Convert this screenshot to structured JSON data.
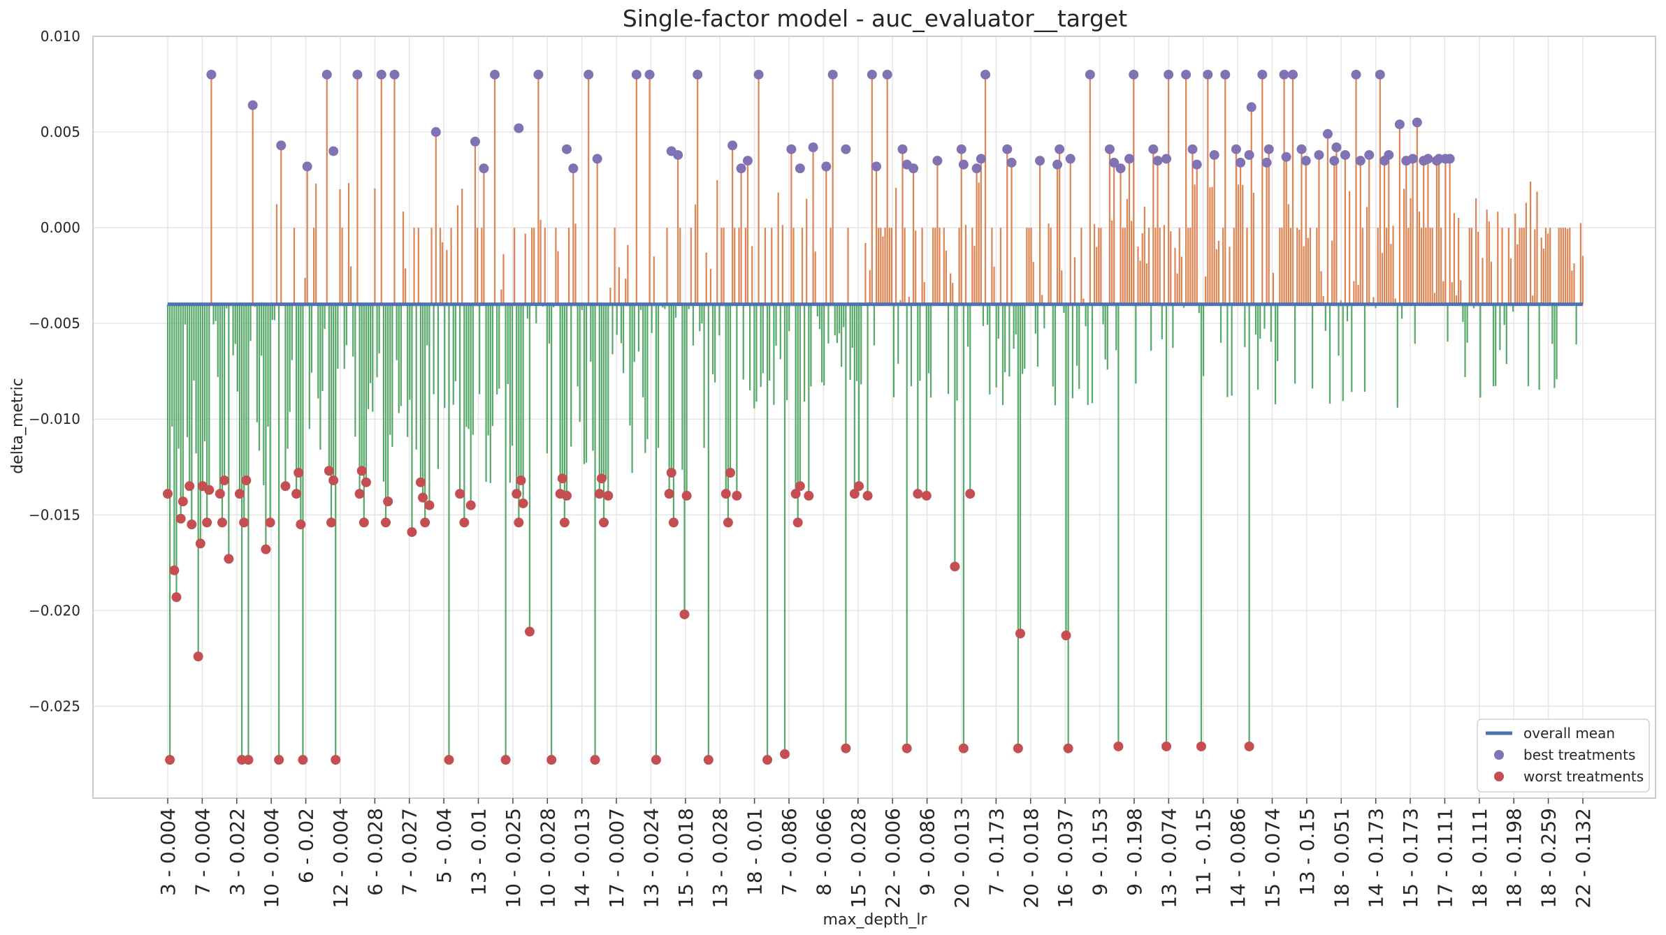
{
  "chart_data": {
    "type": "bar",
    "title": "Single-factor model - auc_evaluator__target",
    "xlabel": "max_depth_lr",
    "ylabel": "delta_metric",
    "ylim": [
      -0.0298,
      0.01
    ],
    "yticks": [
      0.01,
      0.005,
      0.0,
      -0.005,
      -0.01,
      -0.015,
      -0.02,
      -0.025
    ],
    "ytick_labels": [
      "0.010",
      "0.005",
      "0.000",
      "−0.005",
      "−0.010",
      "−0.015",
      "−0.020",
      "−0.025"
    ],
    "n_treatments": 650,
    "overall_mean": -0.004,
    "grid": true,
    "legend_position": "lower-right",
    "colors": {
      "above_mean": "#dd8452",
      "below_mean": "#55a868",
      "mean_line": "#4c72b0",
      "best": "#8172b3",
      "worst": "#c44e52",
      "grid": "#e5e5e5",
      "axes": "#cccccc"
    },
    "xtick_labels": [
      "3 - 0.004",
      "7 - 0.004",
      "3 - 0.022",
      "10 - 0.004",
      "6 - 0.02",
      "12 - 0.004",
      "6 - 0.028",
      "7 - 0.027",
      "5 - 0.04",
      "13 - 0.01",
      "10 - 0.025",
      "10 - 0.028",
      "14 - 0.013",
      "17 - 0.007",
      "13 - 0.024",
      "15 - 0.018",
      "13 - 0.028",
      "18 - 0.01",
      "7 - 0.086",
      "8 - 0.066",
      "15 - 0.028",
      "22 - 0.006",
      "9 - 0.086",
      "20 - 0.013",
      "7 - 0.173",
      "20 - 0.018",
      "16 - 0.037",
      "9 - 0.153",
      "9 - 0.198",
      "13 - 0.074",
      "11 - 0.15",
      "14 - 0.086",
      "15 - 0.074",
      "13 - 0.15",
      "18 - 0.051",
      "14 - 0.173",
      "15 - 0.173",
      "17 - 0.111",
      "18 - 0.111",
      "18 - 0.198",
      "18 - 0.259",
      "22 - 0.132"
    ],
    "best_treatments": [
      {
        "i": 20,
        "v": 0.008
      },
      {
        "i": 39,
        "v": 0.0064
      },
      {
        "i": 52,
        "v": 0.0043
      },
      {
        "i": 64,
        "v": 0.0032
      },
      {
        "i": 73,
        "v": 0.008
      },
      {
        "i": 76,
        "v": 0.004
      },
      {
        "i": 87,
        "v": 0.008
      },
      {
        "i": 98,
        "v": 0.008
      },
      {
        "i": 104,
        "v": 0.008
      },
      {
        "i": 123,
        "v": 0.005
      },
      {
        "i": 141,
        "v": 0.0045
      },
      {
        "i": 145,
        "v": 0.0031
      },
      {
        "i": 150,
        "v": 0.008
      },
      {
        "i": 161,
        "v": 0.0052
      },
      {
        "i": 170,
        "v": 0.008
      },
      {
        "i": 183,
        "v": 0.0041
      },
      {
        "i": 186,
        "v": 0.0031
      },
      {
        "i": 193,
        "v": 0.008
      },
      {
        "i": 197,
        "v": 0.0036
      },
      {
        "i": 215,
        "v": 0.008
      },
      {
        "i": 221,
        "v": 0.008
      },
      {
        "i": 231,
        "v": 0.004
      },
      {
        "i": 234,
        "v": 0.0038
      },
      {
        "i": 243,
        "v": 0.008
      },
      {
        "i": 259,
        "v": 0.0043
      },
      {
        "i": 263,
        "v": 0.0031
      },
      {
        "i": 266,
        "v": 0.0035
      },
      {
        "i": 271,
        "v": 0.008
      },
      {
        "i": 286,
        "v": 0.0041
      },
      {
        "i": 290,
        "v": 0.0031
      },
      {
        "i": 296,
        "v": 0.0042
      },
      {
        "i": 302,
        "v": 0.0032
      },
      {
        "i": 305,
        "v": 0.008
      },
      {
        "i": 311,
        "v": 0.0041
      },
      {
        "i": 323,
        "v": 0.008
      },
      {
        "i": 325,
        "v": 0.0032
      },
      {
        "i": 330,
        "v": 0.008
      },
      {
        "i": 337,
        "v": 0.0041
      },
      {
        "i": 339,
        "v": 0.0033
      },
      {
        "i": 342,
        "v": 0.0031
      },
      {
        "i": 353,
        "v": 0.0035
      },
      {
        "i": 364,
        "v": 0.0041
      },
      {
        "i": 365,
        "v": 0.0033
      },
      {
        "i": 371,
        "v": 0.0031
      },
      {
        "i": 373,
        "v": 0.0036
      },
      {
        "i": 375,
        "v": 0.008
      },
      {
        "i": 385,
        "v": 0.0041
      },
      {
        "i": 387,
        "v": 0.0034
      },
      {
        "i": 400,
        "v": 0.0035
      },
      {
        "i": 408,
        "v": 0.0033
      },
      {
        "i": 409,
        "v": 0.0041
      },
      {
        "i": 414,
        "v": 0.0036
      },
      {
        "i": 423,
        "v": 0.008
      },
      {
        "i": 432,
        "v": 0.0041
      },
      {
        "i": 434,
        "v": 0.0034
      },
      {
        "i": 437,
        "v": 0.0031
      },
      {
        "i": 441,
        "v": 0.0036
      },
      {
        "i": 443,
        "v": 0.008
      },
      {
        "i": 452,
        "v": 0.0041
      },
      {
        "i": 454,
        "v": 0.0035
      },
      {
        "i": 458,
        "v": 0.0036
      },
      {
        "i": 459,
        "v": 0.008
      },
      {
        "i": 467,
        "v": 0.008
      },
      {
        "i": 470,
        "v": 0.0041
      },
      {
        "i": 472,
        "v": 0.0033
      },
      {
        "i": 477,
        "v": 0.008
      },
      {
        "i": 480,
        "v": 0.0038
      },
      {
        "i": 485,
        "v": 0.008
      },
      {
        "i": 490,
        "v": 0.0041
      },
      {
        "i": 492,
        "v": 0.0034
      },
      {
        "i": 496,
        "v": 0.0038
      },
      {
        "i": 497,
        "v": 0.0063
      },
      {
        "i": 502,
        "v": 0.008
      },
      {
        "i": 504,
        "v": 0.0034
      },
      {
        "i": 505,
        "v": 0.0041
      },
      {
        "i": 512,
        "v": 0.008
      },
      {
        "i": 513,
        "v": 0.0037
      },
      {
        "i": 516,
        "v": 0.008
      },
      {
        "i": 520,
        "v": 0.0041
      },
      {
        "i": 522,
        "v": 0.0035
      },
      {
        "i": 528,
        "v": 0.0038
      },
      {
        "i": 532,
        "v": 0.0049
      },
      {
        "i": 535,
        "v": 0.0035
      },
      {
        "i": 536,
        "v": 0.0042
      },
      {
        "i": 540,
        "v": 0.0038
      },
      {
        "i": 545,
        "v": 0.008
      },
      {
        "i": 547,
        "v": 0.0035
      },
      {
        "i": 551,
        "v": 0.0038
      },
      {
        "i": 556,
        "v": 0.008
      },
      {
        "i": 558,
        "v": 0.0035
      },
      {
        "i": 560,
        "v": 0.0038
      },
      {
        "i": 565,
        "v": 0.0054
      },
      {
        "i": 568,
        "v": 0.0035
      },
      {
        "i": 571,
        "v": 0.0036
      },
      {
        "i": 573,
        "v": 0.0055
      },
      {
        "i": 576,
        "v": 0.0035
      },
      {
        "i": 578,
        "v": 0.0036
      },
      {
        "i": 582,
        "v": 0.0035
      },
      {
        "i": 583,
        "v": 0.0036
      },
      {
        "i": 586,
        "v": 0.0036
      },
      {
        "i": 588,
        "v": 0.0036
      }
    ],
    "worst_treatments": [
      {
        "i": 0,
        "v": -0.0139
      },
      {
        "i": 1,
        "v": -0.0278
      },
      {
        "i": 3,
        "v": -0.0179
      },
      {
        "i": 4,
        "v": -0.0193
      },
      {
        "i": 6,
        "v": -0.0152
      },
      {
        "i": 7,
        "v": -0.0143
      },
      {
        "i": 10,
        "v": -0.0135
      },
      {
        "i": 11,
        "v": -0.0155
      },
      {
        "i": 14,
        "v": -0.0224
      },
      {
        "i": 15,
        "v": -0.0165
      },
      {
        "i": 16,
        "v": -0.0135
      },
      {
        "i": 18,
        "v": -0.0154
      },
      {
        "i": 19,
        "v": -0.0137
      },
      {
        "i": 24,
        "v": -0.0139
      },
      {
        "i": 25,
        "v": -0.0154
      },
      {
        "i": 26,
        "v": -0.0132
      },
      {
        "i": 28,
        "v": -0.0173
      },
      {
        "i": 33,
        "v": -0.0139
      },
      {
        "i": 34,
        "v": -0.0278
      },
      {
        "i": 35,
        "v": -0.0154
      },
      {
        "i": 36,
        "v": -0.0132
      },
      {
        "i": 37,
        "v": -0.0278
      },
      {
        "i": 45,
        "v": -0.0168
      },
      {
        "i": 47,
        "v": -0.0154
      },
      {
        "i": 51,
        "v": -0.0278
      },
      {
        "i": 54,
        "v": -0.0135
      },
      {
        "i": 59,
        "v": -0.0139
      },
      {
        "i": 60,
        "v": -0.0128
      },
      {
        "i": 61,
        "v": -0.0155
      },
      {
        "i": 62,
        "v": -0.0278
      },
      {
        "i": 74,
        "v": -0.0127
      },
      {
        "i": 75,
        "v": -0.0154
      },
      {
        "i": 76,
        "v": -0.0132
      },
      {
        "i": 77,
        "v": -0.0278
      },
      {
        "i": 88,
        "v": -0.0139
      },
      {
        "i": 89,
        "v": -0.0127
      },
      {
        "i": 90,
        "v": -0.0154
      },
      {
        "i": 91,
        "v": -0.0133
      },
      {
        "i": 100,
        "v": -0.0154
      },
      {
        "i": 101,
        "v": -0.0143
      },
      {
        "i": 112,
        "v": -0.0159
      },
      {
        "i": 116,
        "v": -0.0133
      },
      {
        "i": 117,
        "v": -0.0141
      },
      {
        "i": 118,
        "v": -0.0154
      },
      {
        "i": 120,
        "v": -0.0145
      },
      {
        "i": 129,
        "v": -0.0278
      },
      {
        "i": 134,
        "v": -0.0139
      },
      {
        "i": 136,
        "v": -0.0154
      },
      {
        "i": 139,
        "v": -0.0145
      },
      {
        "i": 155,
        "v": -0.0278
      },
      {
        "i": 160,
        "v": -0.0139
      },
      {
        "i": 161,
        "v": -0.0154
      },
      {
        "i": 162,
        "v": -0.0132
      },
      {
        "i": 163,
        "v": -0.0144
      },
      {
        "i": 166,
        "v": -0.0211
      },
      {
        "i": 176,
        "v": -0.0278
      },
      {
        "i": 180,
        "v": -0.0139
      },
      {
        "i": 181,
        "v": -0.0131
      },
      {
        "i": 182,
        "v": -0.0154
      },
      {
        "i": 183,
        "v": -0.014
      },
      {
        "i": 196,
        "v": -0.0278
      },
      {
        "i": 198,
        "v": -0.0139
      },
      {
        "i": 199,
        "v": -0.0131
      },
      {
        "i": 200,
        "v": -0.0154
      },
      {
        "i": 202,
        "v": -0.014
      },
      {
        "i": 224,
        "v": -0.0278
      },
      {
        "i": 230,
        "v": -0.0139
      },
      {
        "i": 231,
        "v": -0.0128
      },
      {
        "i": 232,
        "v": -0.0154
      },
      {
        "i": 237,
        "v": -0.0202
      },
      {
        "i": 238,
        "v": -0.014
      },
      {
        "i": 248,
        "v": -0.0278
      },
      {
        "i": 256,
        "v": -0.0139
      },
      {
        "i": 257,
        "v": -0.0154
      },
      {
        "i": 258,
        "v": -0.0128
      },
      {
        "i": 261,
        "v": -0.014
      },
      {
        "i": 275,
        "v": -0.0278
      },
      {
        "i": 283,
        "v": -0.0275
      },
      {
        "i": 288,
        "v": -0.0139
      },
      {
        "i": 289,
        "v": -0.0154
      },
      {
        "i": 290,
        "v": -0.0135
      },
      {
        "i": 294,
        "v": -0.014
      },
      {
        "i": 311,
        "v": -0.0272
      },
      {
        "i": 315,
        "v": -0.0139
      },
      {
        "i": 317,
        "v": -0.0135
      },
      {
        "i": 321,
        "v": -0.014
      },
      {
        "i": 339,
        "v": -0.0272
      },
      {
        "i": 344,
        "v": -0.0139
      },
      {
        "i": 348,
        "v": -0.014
      },
      {
        "i": 361,
        "v": -0.0177
      },
      {
        "i": 365,
        "v": -0.0272
      },
      {
        "i": 368,
        "v": -0.0139
      },
      {
        "i": 390,
        "v": -0.0272
      },
      {
        "i": 391,
        "v": -0.0212
      },
      {
        "i": 412,
        "v": -0.0213
      },
      {
        "i": 413,
        "v": -0.0272
      },
      {
        "i": 436,
        "v": -0.0271
      },
      {
        "i": 458,
        "v": -0.0271
      },
      {
        "i": 474,
        "v": -0.0271
      },
      {
        "i": 496,
        "v": -0.0271
      }
    ]
  },
  "legend": {
    "items": [
      {
        "label": "overall mean",
        "kind": "line",
        "color": "#4c72b0"
      },
      {
        "label": "best treatments",
        "kind": "dot",
        "color": "#8172b3"
      },
      {
        "label": "worst treatments",
        "kind": "dot",
        "color": "#c44e52"
      }
    ]
  }
}
